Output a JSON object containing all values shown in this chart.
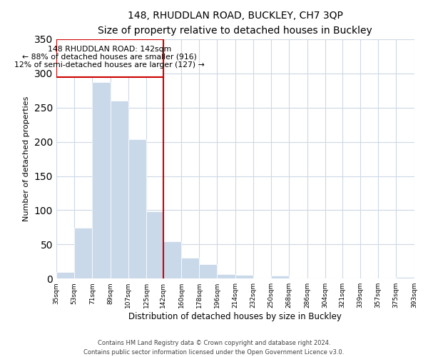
{
  "title": "148, RHUDDLAN ROAD, BUCKLEY, CH7 3QP",
  "subtitle": "Size of property relative to detached houses in Buckley",
  "xlabel": "Distribution of detached houses by size in Buckley",
  "ylabel": "Number of detached properties",
  "bar_color": "#c9d9ea",
  "marker_color": "#cc0000",
  "bins": [
    35,
    53,
    71,
    89,
    107,
    125,
    142,
    160,
    178,
    196,
    214,
    232,
    250,
    268,
    286,
    304,
    321,
    339,
    357,
    375,
    393
  ],
  "bin_labels": [
    "35sqm",
    "53sqm",
    "71sqm",
    "89sqm",
    "107sqm",
    "125sqm",
    "142sqm",
    "160sqm",
    "178sqm",
    "196sqm",
    "214sqm",
    "232sqm",
    "250sqm",
    "268sqm",
    "286sqm",
    "304sqm",
    "321sqm",
    "339sqm",
    "357sqm",
    "375sqm",
    "393sqm"
  ],
  "counts": [
    10,
    74,
    287,
    260,
    204,
    98,
    55,
    31,
    21,
    7,
    5,
    0,
    4,
    0,
    0,
    0,
    0,
    0,
    0,
    2
  ],
  "property_size_bin": 142,
  "property_label": "148 RHUDDLAN ROAD: 142sqm",
  "annotation_line1": "← 88% of detached houses are smaller (916)",
  "annotation_line2": "12% of semi-detached houses are larger (127) →",
  "ylim": [
    0,
    350
  ],
  "yticks": [
    0,
    50,
    100,
    150,
    200,
    250,
    300,
    350
  ],
  "title_fontsize": 10,
  "subtitle_fontsize": 9,
  "footer_line1": "Contains HM Land Registry data © Crown copyright and database right 2024.",
  "footer_line2": "Contains public sector information licensed under the Open Government Licence v3.0."
}
